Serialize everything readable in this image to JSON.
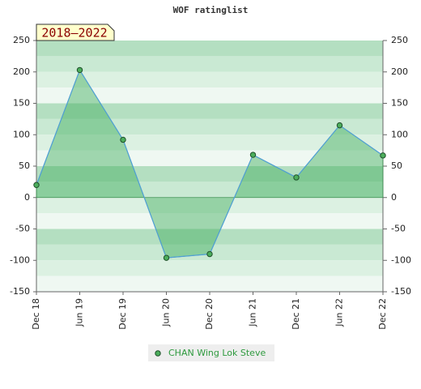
{
  "chart_data": {
    "type": "area-line",
    "title": "WOF ratinglist",
    "label": "2018–2022",
    "categories": [
      "Dec 18",
      "Jun 19",
      "Dec 19",
      "Jun 20",
      "Dec 20",
      "Jun 21",
      "Dec 21",
      "Jun 22",
      "Dec 22"
    ],
    "series": [
      {
        "name": "CHAN Wing Lok Steve",
        "color": "#4f9fd6",
        "fill": "#3fae5c",
        "marker": "#4cae5c",
        "values": [
          20,
          203,
          92,
          -96,
          -90,
          68,
          32,
          115,
          67
        ]
      }
    ],
    "ylim": [
      -150,
      250
    ],
    "yticks": [
      -150,
      -100,
      -50,
      0,
      50,
      100,
      150,
      200,
      250
    ],
    "y2ticks": [
      -150,
      -100,
      -50,
      0,
      50,
      100,
      150,
      200,
      250
    ]
  }
}
